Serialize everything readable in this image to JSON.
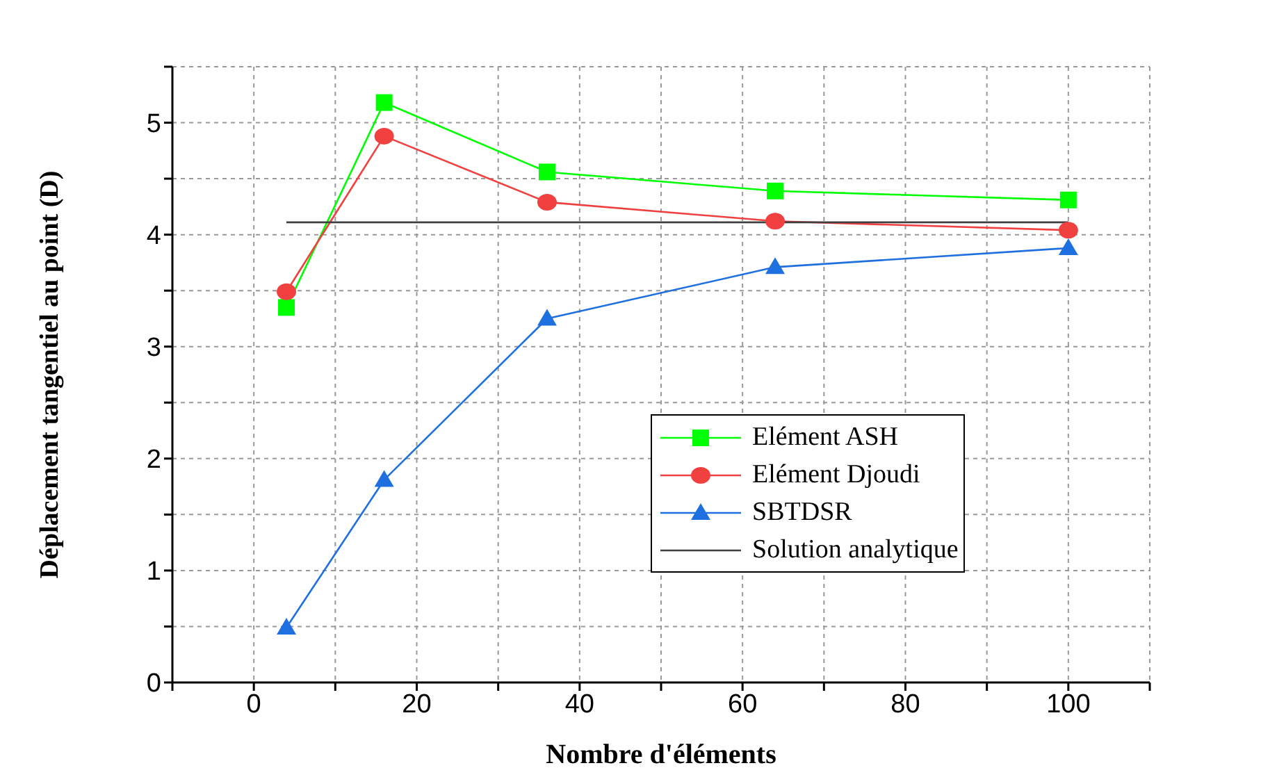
{
  "chart_data": {
    "type": "line",
    "xlabel": "Nombre d'éléments",
    "ylabel": "Déplacement tangentiel au point (D)",
    "xlim": [
      -10,
      110
    ],
    "xticks": [
      {
        "value": -10,
        "label": null
      },
      0,
      {
        "value": 10,
        "label": null
      },
      20,
      {
        "value": 30,
        "label": null
      },
      40,
      {
        "value": 50,
        "label": null
      },
      60,
      {
        "value": 70,
        "label": null
      },
      80,
      {
        "value": 90,
        "label": null
      },
      100,
      {
        "value": 110,
        "label": null
      }
    ],
    "ylim": [
      0,
      5.5
    ],
    "yticks": [
      0,
      {
        "value": 0.5,
        "label": null
      },
      1,
      {
        "value": 1.5,
        "label": null
      },
      2,
      {
        "value": 2.5,
        "label": null
      },
      3,
      {
        "value": 3.5,
        "label": null
      },
      4,
      {
        "value": 4.5,
        "label": null
      },
      5,
      {
        "value": 5.5,
        "label": null
      }
    ],
    "grid": true,
    "legend": "right",
    "line_style": "solid",
    "series": [
      {
        "name": "Elément ASH",
        "color": "#00ff00",
        "marker": "square",
        "x": [
          4,
          16,
          36,
          64,
          100
        ],
        "values": [
          3.35,
          5.18,
          4.56,
          4.39,
          4.31
        ]
      },
      {
        "name": "Elément Djoudi",
        "color": "#f04040",
        "marker": "circle",
        "x": [
          4,
          16,
          36,
          64,
          100
        ],
        "values": [
          3.49,
          4.88,
          4.29,
          4.12,
          4.04
        ]
      },
      {
        "name": "SBTDSR",
        "color": "#1e6fe0",
        "marker": "triangle",
        "x": [
          4,
          16,
          36,
          64,
          100
        ],
        "values": [
          0.49,
          1.81,
          3.25,
          3.71,
          3.88
        ]
      },
      {
        "name": "Solution analytique",
        "color": "#404040",
        "marker": "none",
        "x": [
          4,
          100
        ],
        "values": [
          4.11,
          4.11
        ]
      }
    ]
  }
}
